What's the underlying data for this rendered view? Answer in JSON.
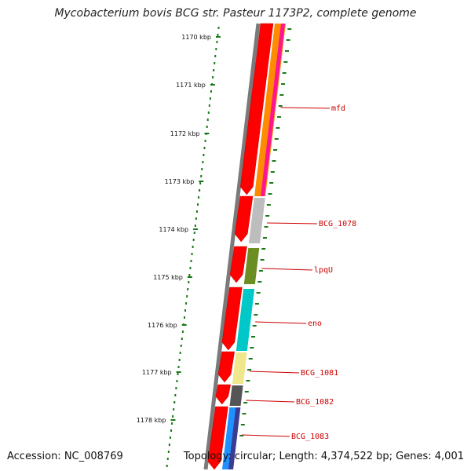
{
  "title": "Mycobacterium bovis BCG str. Pasteur 1173P2, complete genome",
  "footer": {
    "accession": "Accession: NC_008769",
    "topology": "Topology: circular; Length: 4,374,522 bp; Genes: 4,001"
  },
  "ruler": {
    "labels": [
      "1170 kbp",
      "1171 kbp",
      "1172 kbp",
      "1173 kbp",
      "1174 kbp",
      "1175 kbp",
      "1176 kbp",
      "1177 kbp",
      "1178 kbp"
    ],
    "tick_color": "#1a7a1a"
  },
  "genes": [
    {
      "name": "mfd",
      "color": "#ff8c00"
    },
    {
      "name": "BCG_1078",
      "color": "#bdbdbd"
    },
    {
      "name": "lpqU",
      "color": "#6b8e23"
    },
    {
      "name": "eno",
      "color": "#00c8c8"
    },
    {
      "name": "BCG_1081",
      "color": "#f0e68c"
    },
    {
      "name": "BCG_1082",
      "color": "#555555"
    },
    {
      "name": "BCG_1083",
      "color": "#1e90ff"
    }
  ],
  "colors": {
    "backbone": "#7a7a7a",
    "cds_arrow": "#ff0000",
    "label": "#cc0000"
  }
}
